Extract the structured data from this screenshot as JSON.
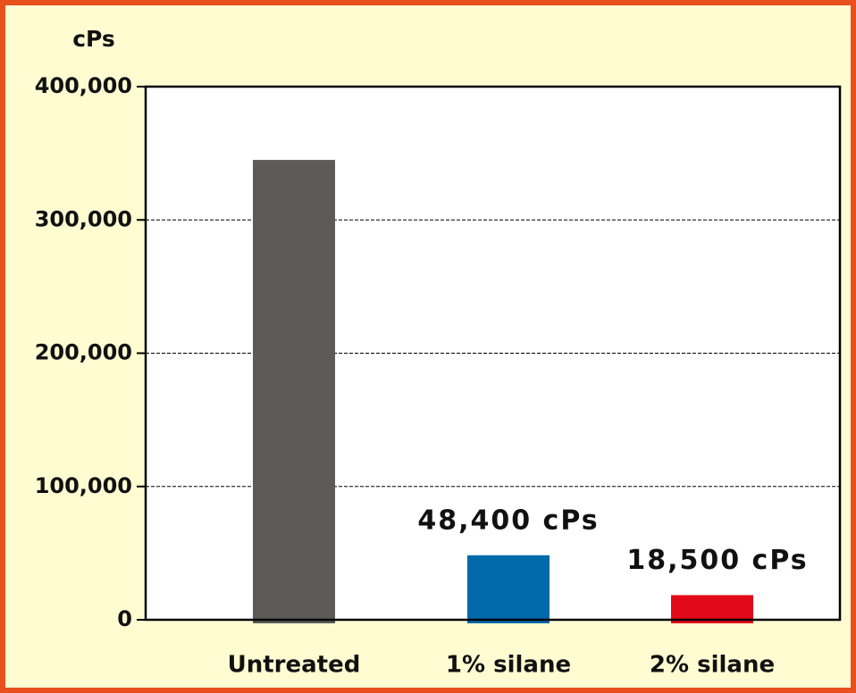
{
  "chart_data": {
    "type": "bar",
    "y_axis_label": "cPs",
    "categories": [
      "Untreated",
      "1% silane",
      "2% silane"
    ],
    "series": [
      {
        "name": null,
        "values": [
          345000,
          48400,
          18500
        ],
        "value_labels": [
          null,
          "48,400 cPs",
          "18,500 cPs"
        ],
        "colors": [
          "#5c5b5a",
          "#0069aa",
          "#e2091b"
        ]
      }
    ],
    "ylim": [
      0,
      400000
    ],
    "yticks": [
      0,
      {
        "value": 100000,
        "label": "100,000"
      },
      {
        "value": 200000,
        "label": "200,000"
      },
      {
        "value": 300000,
        "label": "300,000"
      },
      {
        "value": 400000,
        "label": "400,000"
      }
    ],
    "grid": true
  }
}
